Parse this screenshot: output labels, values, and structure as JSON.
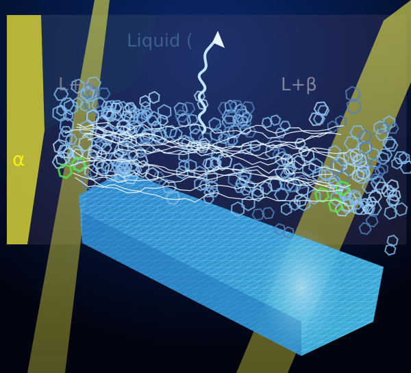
{
  "labels": {
    "liquid": "Liquid (",
    "l_alpha": "L+α",
    "l_beta": "L+β",
    "alpha": "α"
  }
}
